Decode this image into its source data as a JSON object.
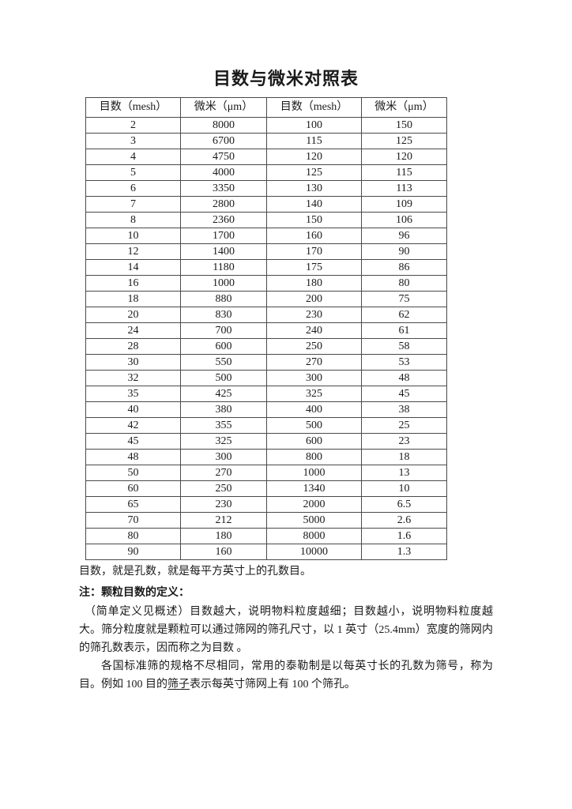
{
  "page": {
    "title": "目数与微米对照表"
  },
  "table": {
    "headers": [
      "目数（mesh）",
      "微米（μm）",
      "目数（mesh）",
      "微米（μm）"
    ],
    "rows": [
      [
        "2",
        "8000",
        "100",
        "150"
      ],
      [
        "3",
        "6700",
        "115",
        "125"
      ],
      [
        "4",
        "4750",
        "120",
        "120"
      ],
      [
        "5",
        "4000",
        "125",
        "115"
      ],
      [
        "6",
        "3350",
        "130",
        "113"
      ],
      [
        "7",
        "2800",
        "140",
        "109"
      ],
      [
        "8",
        "2360",
        "150",
        "106"
      ],
      [
        "10",
        "1700",
        "160",
        "96"
      ],
      [
        "12",
        "1400",
        "170",
        "90"
      ],
      [
        "14",
        "1180",
        "175",
        "86"
      ],
      [
        "16",
        "1000",
        "180",
        "80"
      ],
      [
        "18",
        "880",
        "200",
        "75"
      ],
      [
        "20",
        "830",
        "230",
        "62"
      ],
      [
        "24",
        "700",
        "240",
        "61"
      ],
      [
        "28",
        "600",
        "250",
        "58"
      ],
      [
        "30",
        "550",
        "270",
        "53"
      ],
      [
        "32",
        "500",
        "300",
        "48"
      ],
      [
        "35",
        "425",
        "325",
        "45"
      ],
      [
        "40",
        "380",
        "400",
        "38"
      ],
      [
        "42",
        "355",
        "500",
        "25"
      ],
      [
        "45",
        "325",
        "600",
        "23"
      ],
      [
        "48",
        "300",
        "800",
        "18"
      ],
      [
        "50",
        "270",
        "1000",
        "13"
      ],
      [
        "60",
        "250",
        "1340",
        "10"
      ],
      [
        "65",
        "230",
        "2000",
        "6.5"
      ],
      [
        "70",
        "212",
        "5000",
        "2.6"
      ],
      [
        "80",
        "180",
        "8000",
        "1.6"
      ],
      [
        "90",
        "160",
        "10000",
        "1.3"
      ]
    ]
  },
  "body": {
    "intro_line": "目数，就是孔数，就是每平方英寸上的孔数目。",
    "note_heading": "注：颗粒目数的定义：",
    "para_definition": "（简单定义见概述）目数越大，说明物料粒度越细；目数越小，说明物料粒度越大。筛分粒度就是颗粒可以通过筛网的筛孔尺寸，以 1 英寸（25.4mm）宽度的筛网内的筛孔数表示，因而称之为目数 。",
    "para_standards_segments": [
      {
        "text": "各国标准筛的规格不尽相同，常用的泰勒制是以每英寸长的孔数为筛号，称为目。例如 100 目的",
        "underline": false
      },
      {
        "text": "筛子",
        "underline": true
      },
      {
        "text": "表示每英寸筛网上有 100 个筛孔。",
        "underline": false
      }
    ]
  },
  "colors": {
    "text": "#1a1a1a",
    "table_border": "#4a4a4a",
    "page_background": "#ffffff"
  }
}
